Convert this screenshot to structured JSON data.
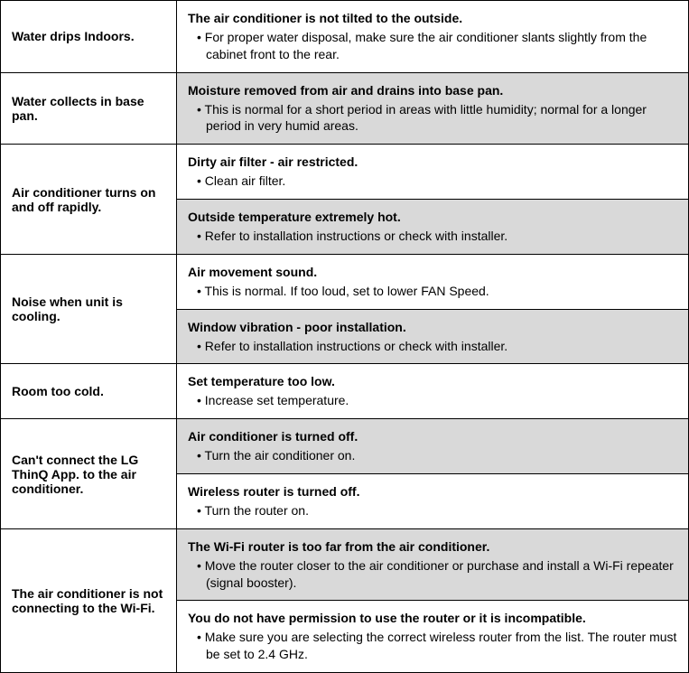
{
  "rows": [
    {
      "symptom": "Water drips Indoors.",
      "causes": [
        {
          "shaded": false,
          "cause": "The air conditioner is not tilted to the outside.",
          "notes": [
            "For proper water disposal, make sure the air conditioner slants slightly from the cabinet front to the rear."
          ]
        }
      ]
    },
    {
      "symptom": "Water collects in base pan.",
      "causes": [
        {
          "shaded": true,
          "cause": "Moisture removed from air and drains into base pan.",
          "notes": [
            "This is normal for a short period in areas with little humidity; normal for a longer period in very humid areas."
          ]
        }
      ]
    },
    {
      "symptom": "Air conditioner turns on and off rapidly.",
      "causes": [
        {
          "shaded": false,
          "cause": "Dirty air filter - air restricted.",
          "notes": [
            "Clean air filter."
          ]
        },
        {
          "shaded": true,
          "cause": "Outside temperature extremely hot.",
          "notes": [
            "Refer to installation instructions or check with installer."
          ]
        }
      ]
    },
    {
      "symptom": "Noise when unit is cooling.",
      "causes": [
        {
          "shaded": false,
          "cause": "Air movement sound.",
          "notes": [
            "This is normal. If too loud, set to lower FAN Speed."
          ]
        },
        {
          "shaded": true,
          "cause": "Window vibration - poor installation.",
          "notes": [
            "Refer to installation instructions or check with installer."
          ]
        }
      ]
    },
    {
      "symptom": "Room too cold.",
      "causes": [
        {
          "shaded": false,
          "cause": "Set temperature too low.",
          "notes": [
            "Increase set temperature."
          ]
        }
      ]
    },
    {
      "symptom": "Can't connect the LG ThinQ App. to the air conditioner.",
      "causes": [
        {
          "shaded": true,
          "cause": "Air conditioner is turned off.",
          "notes": [
            "Turn the air conditioner on."
          ]
        },
        {
          "shaded": false,
          "cause": "Wireless router is turned off.",
          "notes": [
            "Turn the router on."
          ]
        }
      ]
    },
    {
      "symptom": "The air conditioner is not connecting to the Wi-Fi.",
      "causes": [
        {
          "shaded": true,
          "cause": "The Wi-Fi router is too far from the air conditioner.",
          "notes": [
            "Move the router closer to the air conditioner or purchase and install a Wi-Fi repeater (signal booster)."
          ]
        },
        {
          "shaded": false,
          "cause": "You do not have permission to use the router or it is incompatible.",
          "notes": [
            "Make sure you are selecting the correct wireless router from the list. The router must be set to 2.4 GHz."
          ]
        }
      ]
    }
  ]
}
